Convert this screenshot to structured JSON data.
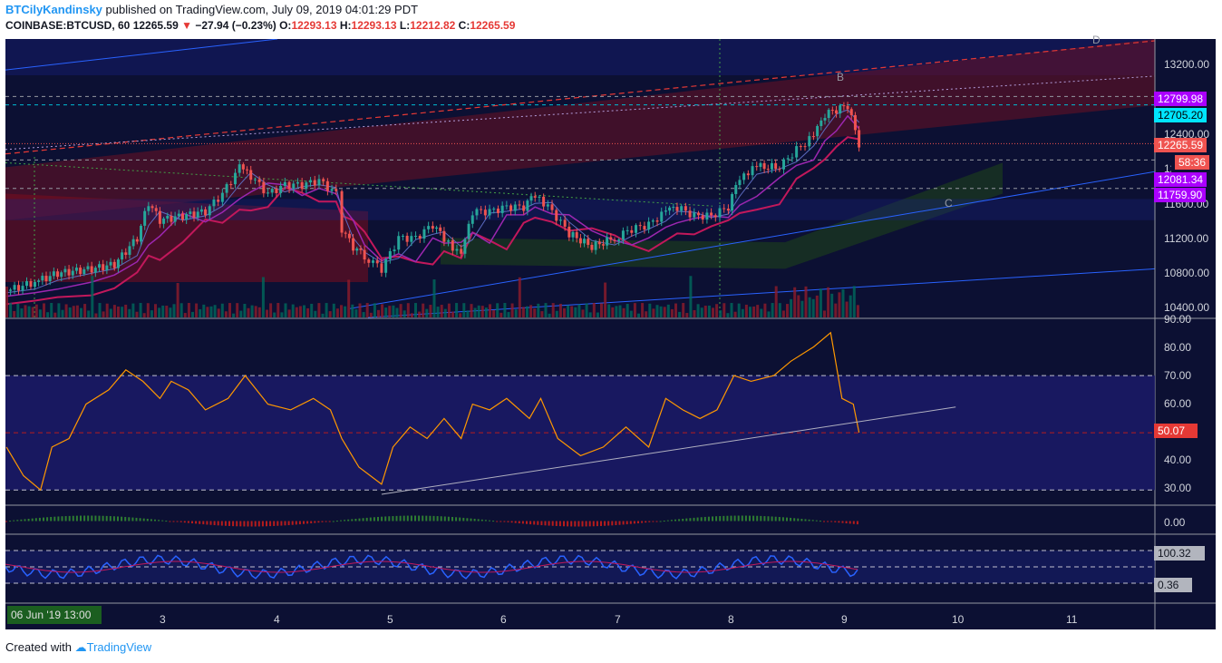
{
  "header": {
    "username": "BTCilyKandinsky",
    "published": "published on TradingView.com, July 09, 2019 04:01:29 PDT"
  },
  "symbol_line": {
    "symbol": "COINBASE:BTCUSD, 60",
    "last": "12265.59",
    "arrow": "▼",
    "change": "−27.94 (−0.23%)",
    "o_label": "O:",
    "o": "12293.13",
    "h_label": "H:",
    "h": "12293.13",
    "l_label": "L:",
    "l": "12212.82",
    "c_label": "C:",
    "c": "12265.59"
  },
  "price_axis": [
    "13200.00",
    "12400.00",
    "12000.00",
    "11600.00",
    "11200.00",
    "10800.00",
    "10400.00"
  ],
  "price_tags": [
    {
      "label": "12799.98",
      "bg": "#aa00ff",
      "color": "#ffffff"
    },
    {
      "label": "12705.20",
      "bg": "#00e5ff",
      "color": "#000000"
    },
    {
      "label": "12265.59",
      "bg": "#ef5350",
      "color": "#ffffff"
    },
    {
      "label": "58:36",
      "bg": "#ef5350",
      "color": "#ffffff"
    },
    {
      "label": "12081.34",
      "bg": "#aa00ff",
      "color": "#ffffff"
    },
    {
      "label": "11759.90",
      "bg": "#aa00ff",
      "color": "#ffffff"
    }
  ],
  "wave_labels": [
    "B",
    "C",
    "D"
  ],
  "rsi_axis": [
    "90.00",
    "80.00",
    "70.00",
    "60.00",
    "50.00",
    "40.00",
    "30.00"
  ],
  "rsi_tag": "50.07",
  "macd_axis": "0.00",
  "osc_tags": [
    "100.32",
    "0.36"
  ],
  "x_axis": [
    "2",
    "3",
    "4",
    "5",
    "6",
    "7",
    "8",
    "9",
    "10",
    "11"
  ],
  "crosshair_date": "06 Jun '19   13:00",
  "footer": {
    "created": "Created with",
    "brand": "TradingView"
  },
  "colors": {
    "bg": "#0c1033",
    "up": "#26a69a",
    "down": "#ef5350",
    "rsi": "#ff9800",
    "cci": "#2962ff",
    "cci_signal": "#c2185b"
  },
  "chart_data": {
    "type": "candlestick",
    "title": "COINBASE:BTCUSD, 60",
    "ylim": [
      10300,
      13450
    ],
    "x_days": [
      "2",
      "3",
      "4",
      "5",
      "6",
      "7",
      "8",
      "9",
      "10",
      "11"
    ],
    "close_path": [
      [
        1.65,
        10600
      ],
      [
        1.9,
        10700
      ],
      [
        2.1,
        10800
      ],
      [
        2.4,
        10850
      ],
      [
        2.6,
        10900
      ],
      [
        2.8,
        11200
      ],
      [
        2.9,
        11600
      ],
      [
        3.0,
        11400
      ],
      [
        3.2,
        11450
      ],
      [
        3.4,
        11500
      ],
      [
        3.55,
        11700
      ],
      [
        3.7,
        12000
      ],
      [
        3.8,
        11900
      ],
      [
        3.95,
        11700
      ],
      [
        4.1,
        11800
      ],
      [
        4.25,
        11800
      ],
      [
        4.4,
        11850
      ],
      [
        4.55,
        11700
      ],
      [
        4.6,
        11300
      ],
      [
        4.7,
        11100
      ],
      [
        4.8,
        11000
      ],
      [
        4.95,
        10850
      ],
      [
        5.1,
        11200
      ],
      [
        5.25,
        11200
      ],
      [
        5.4,
        11350
      ],
      [
        5.5,
        11200
      ],
      [
        5.65,
        11000
      ],
      [
        5.75,
        11500
      ],
      [
        5.9,
        11500
      ],
      [
        6.05,
        11550
      ],
      [
        6.2,
        11550
      ],
      [
        6.3,
        11700
      ],
      [
        6.45,
        11500
      ],
      [
        6.6,
        11250
      ],
      [
        6.8,
        11100
      ],
      [
        7.0,
        11200
      ],
      [
        7.15,
        11300
      ],
      [
        7.3,
        11350
      ],
      [
        7.45,
        11500
      ],
      [
        7.55,
        11550
      ],
      [
        7.7,
        11450
      ],
      [
        7.85,
        11450
      ],
      [
        8.0,
        11550
      ],
      [
        8.1,
        11900
      ],
      [
        8.25,
        12000
      ],
      [
        8.45,
        12000
      ],
      [
        8.6,
        12200
      ],
      [
        8.75,
        12350
      ],
      [
        8.85,
        12600
      ],
      [
        8.95,
        12650
      ],
      [
        9.05,
        12700
      ],
      [
        9.15,
        12265.59
      ]
    ],
    "rsi": {
      "ylim": [
        25,
        90
      ],
      "levels": [
        70,
        50,
        30
      ],
      "last": 50.07,
      "points": [
        [
          1.65,
          45
        ],
        [
          1.8,
          35
        ],
        [
          1.95,
          30
        ],
        [
          2.05,
          45
        ],
        [
          2.2,
          48
        ],
        [
          2.35,
          60
        ],
        [
          2.55,
          65
        ],
        [
          2.7,
          72
        ],
        [
          2.85,
          68
        ],
        [
          3.0,
          62
        ],
        [
          3.1,
          68
        ],
        [
          3.25,
          65
        ],
        [
          3.4,
          58
        ],
        [
          3.6,
          62
        ],
        [
          3.75,
          70
        ],
        [
          3.95,
          60
        ],
        [
          4.15,
          58
        ],
        [
          4.35,
          62
        ],
        [
          4.5,
          58
        ],
        [
          4.6,
          48
        ],
        [
          4.75,
          38
        ],
        [
          4.95,
          32
        ],
        [
          5.05,
          45
        ],
        [
          5.2,
          52
        ],
        [
          5.35,
          48
        ],
        [
          5.5,
          55
        ],
        [
          5.65,
          48
        ],
        [
          5.75,
          60
        ],
        [
          5.9,
          58
        ],
        [
          6.05,
          62
        ],
        [
          6.25,
          55
        ],
        [
          6.35,
          62
        ],
        [
          6.5,
          48
        ],
        [
          6.7,
          42
        ],
        [
          6.9,
          45
        ],
        [
          7.1,
          52
        ],
        [
          7.3,
          45
        ],
        [
          7.45,
          62
        ],
        [
          7.6,
          58
        ],
        [
          7.75,
          55
        ],
        [
          7.9,
          58
        ],
        [
          8.05,
          70
        ],
        [
          8.2,
          68
        ],
        [
          8.4,
          70
        ],
        [
          8.55,
          75
        ],
        [
          8.75,
          80
        ],
        [
          8.9,
          85
        ],
        [
          9.0,
          62
        ],
        [
          9.1,
          60
        ],
        [
          9.15,
          50.07
        ]
      ],
      "trendline": [
        [
          4.95,
          28.5
        ],
        [
          10.0,
          59
        ]
      ]
    },
    "macd": {
      "zero": 0.0
    },
    "oscillator": {
      "levels": [
        100.32,
        0.36
      ]
    }
  }
}
